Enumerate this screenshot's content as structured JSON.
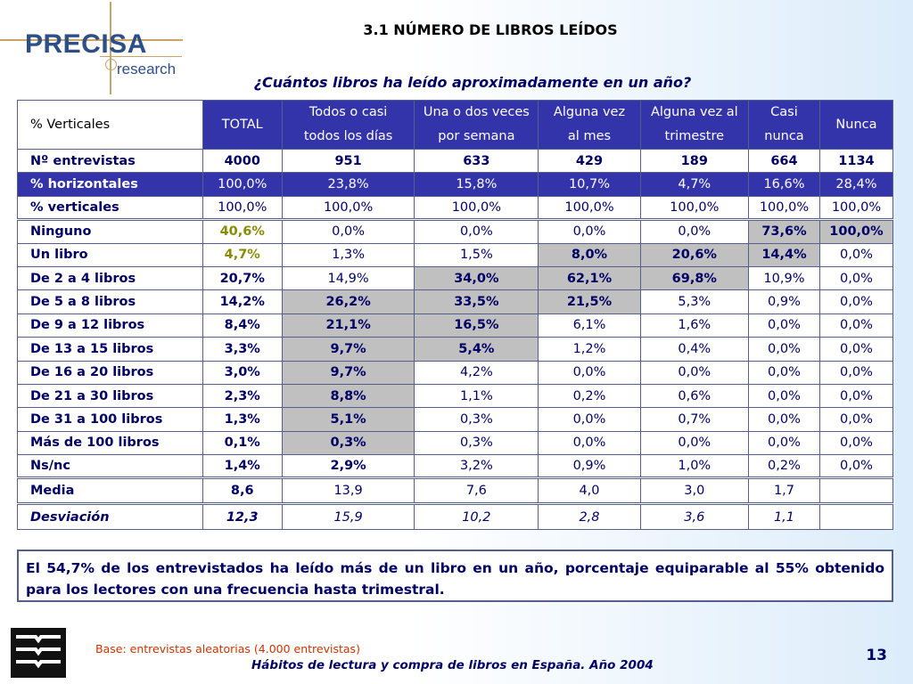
{
  "logo": {
    "word": "PRECISA",
    "sub": "research"
  },
  "title": "3.1 NÚMERO DE LIBROS LEÍDOS",
  "question": "¿Cuántos libros ha leído aproximadamente en un año?",
  "table": {
    "corner": "% Verticales",
    "columns": [
      [
        "TOTAL"
      ],
      [
        "Todos o casi",
        "todos los días"
      ],
      [
        "Una o dos veces",
        "por semana"
      ],
      [
        "Alguna vez",
        "al mes"
      ],
      [
        "Alguna vez al",
        "trimestre"
      ],
      [
        "Casi",
        "nunca"
      ],
      [
        "Nunca"
      ]
    ],
    "rows": [
      {
        "label": "Nº entrevistas",
        "values": [
          "4000",
          "951",
          "633",
          "429",
          "189",
          "664",
          "1134"
        ]
      },
      {
        "label": "% horizontales",
        "values": [
          "100,0%",
          "23,8%",
          "15,8%",
          "10,7%",
          "4,7%",
          "16,6%",
          "28,4%"
        ]
      },
      {
        "label": "% verticales",
        "values": [
          "100,0%",
          "100,0%",
          "100,0%",
          "100,0%",
          "100,0%",
          "100,0%",
          "100,0%"
        ]
      },
      {
        "label": "Ninguno",
        "values": [
          "40,6%",
          "0,0%",
          "0,0%",
          "0,0%",
          "0,0%",
          "73,6%",
          "100,0%"
        ]
      },
      {
        "label": "Un libro",
        "values": [
          "4,7%",
          "1,3%",
          "1,5%",
          "8,0%",
          "20,6%",
          "14,4%",
          "0,0%"
        ]
      },
      {
        "label": "De 2 a 4 libros",
        "values": [
          "20,7%",
          "14,9%",
          "34,0%",
          "62,1%",
          "69,8%",
          "10,9%",
          "0,0%"
        ]
      },
      {
        "label": "De 5 a 8 libros",
        "values": [
          "14,2%",
          "26,2%",
          "33,5%",
          "21,5%",
          "5,3%",
          "0,9%",
          "0,0%"
        ]
      },
      {
        "label": "De 9 a 12 libros",
        "values": [
          "8,4%",
          "21,1%",
          "16,5%",
          "6,1%",
          "1,6%",
          "0,0%",
          "0,0%"
        ]
      },
      {
        "label": "De 13 a 15 libros",
        "values": [
          "3,3%",
          "9,7%",
          "5,4%",
          "1,2%",
          "0,4%",
          "0,0%",
          "0,0%"
        ]
      },
      {
        "label": "De 16 a 20 libros",
        "values": [
          "3,0%",
          "9,7%",
          "4,2%",
          "0,0%",
          "0,0%",
          "0,0%",
          "0,0%"
        ]
      },
      {
        "label": "De 21 a 30 libros",
        "values": [
          "2,3%",
          "8,8%",
          "1,1%",
          "0,2%",
          "0,6%",
          "0,0%",
          "0,0%"
        ]
      },
      {
        "label": "De 31 a 100 libros",
        "values": [
          "1,3%",
          "5,1%",
          "0,3%",
          "0,0%",
          "0,7%",
          "0,0%",
          "0,0%"
        ]
      },
      {
        "label": "Más de 100 libros",
        "values": [
          "0,1%",
          "0,3%",
          "0,3%",
          "0,0%",
          "0,0%",
          "0,0%",
          "0,0%"
        ]
      },
      {
        "label": "Ns/nc",
        "values": [
          "1,4%",
          "2,9%",
          "3,2%",
          "0,9%",
          "1,0%",
          "0,2%",
          "0,0%"
        ]
      },
      {
        "label": "Media",
        "values": [
          "8,6",
          "13,9",
          "7,6",
          "4,0",
          "3,0",
          "1,7",
          ""
        ]
      },
      {
        "label": "Desviación",
        "values": [
          "12,3",
          "15,9",
          "10,2",
          "2,8",
          "3,6",
          "1,1",
          ""
        ]
      }
    ]
  },
  "note": "El 54,7% de los entrevistados ha leído más de un libro en un año, porcentaje equiparable al 55% obtenido para los lectores con una frecuencia hasta trimestral.",
  "footer": {
    "base": "Base: entrevistas aleatorias (4.000 entrevistas)",
    "source": "Hábitos de lectura y compra de libros en España. Año 2004",
    "page": "13"
  },
  "colors": {
    "header_bg": "#3333aa",
    "text": "#000066",
    "highlight": "#c0c0c0",
    "base_text": "#cc3300"
  }
}
